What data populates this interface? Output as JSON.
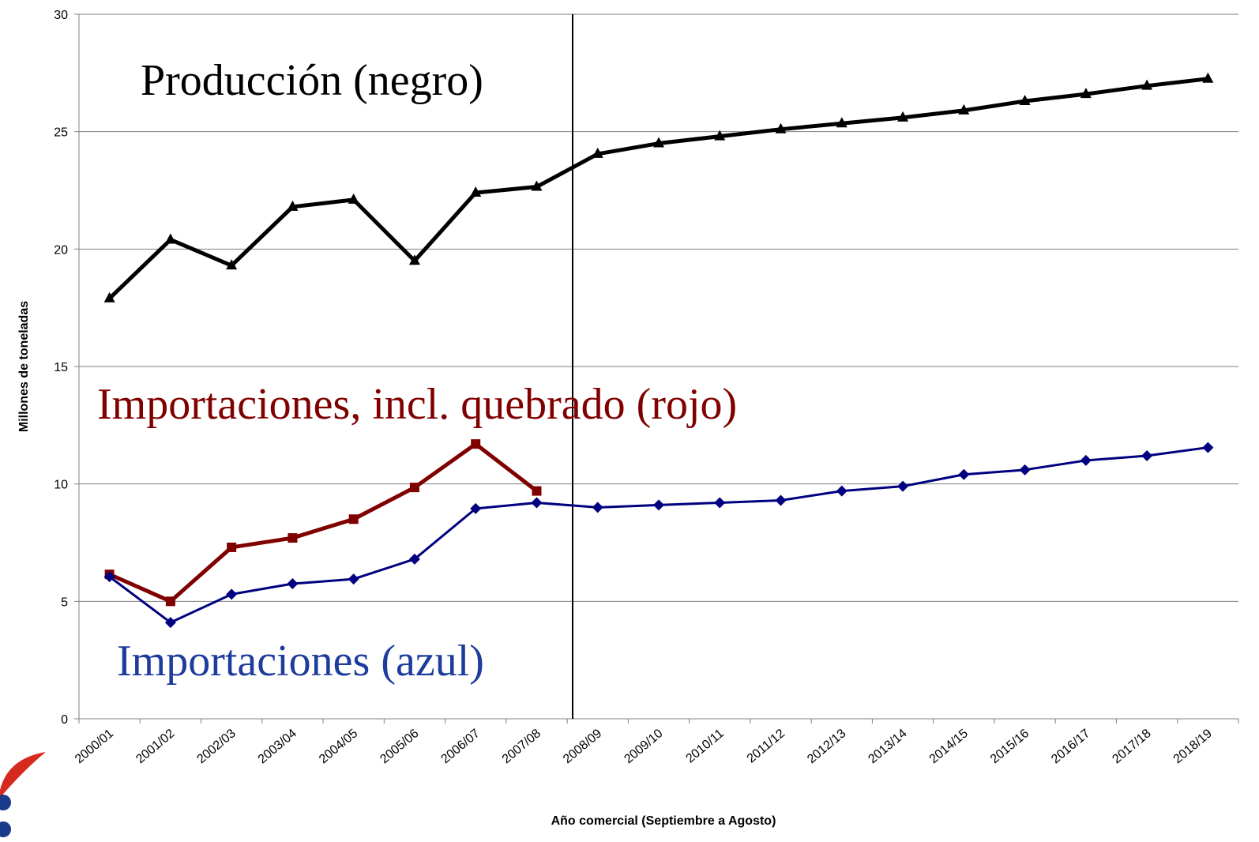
{
  "chart_data": {
    "type": "line",
    "categories": [
      "2000/01",
      "2001/02",
      "2002/03",
      "2003/04",
      "2004/05",
      "2005/06",
      "2006/07",
      "2007/08",
      "2008/09",
      "2009/10",
      "2010/11",
      "2011/12",
      "2012/13",
      "2013/14",
      "2014/15",
      "2015/16",
      "2016/17",
      "2017/18",
      "2018/19"
    ],
    "series": [
      {
        "name": "Producción (negro)",
        "color": "#000000",
        "marker": "triangle",
        "values": [
          17.9,
          20.4,
          19.3,
          21.8,
          22.1,
          19.5,
          22.4,
          22.65,
          24.05,
          24.5,
          24.8,
          25.1,
          25.35,
          25.6,
          25.9,
          26.3,
          26.6,
          26.95,
          27.25
        ]
      },
      {
        "name": "Importaciones, incl. quebrado (rojo)",
        "color": "#800000",
        "marker": "square",
        "values": [
          6.15,
          5.0,
          7.3,
          7.7,
          8.5,
          9.85,
          11.7,
          9.7,
          null,
          null,
          null,
          null,
          null,
          null,
          null,
          null,
          null,
          null,
          null
        ]
      },
      {
        "name": "Importaciones (azul)",
        "color": "#000080",
        "marker": "diamond",
        "values": [
          6.05,
          4.1,
          5.3,
          5.75,
          5.95,
          6.8,
          8.95,
          9.2,
          9.0,
          9.1,
          9.2,
          9.3,
          9.7,
          9.9,
          10.4,
          10.6,
          11.0,
          11.2,
          11.55
        ]
      }
    ],
    "ylim": [
      0,
      30
    ],
    "yticks": [
      0,
      5,
      10,
      15,
      20,
      25,
      30
    ],
    "grid": true,
    "y_label": "Millones de toneladas",
    "x_label": "Año comercial (Septiembre a Agosto)"
  }
}
